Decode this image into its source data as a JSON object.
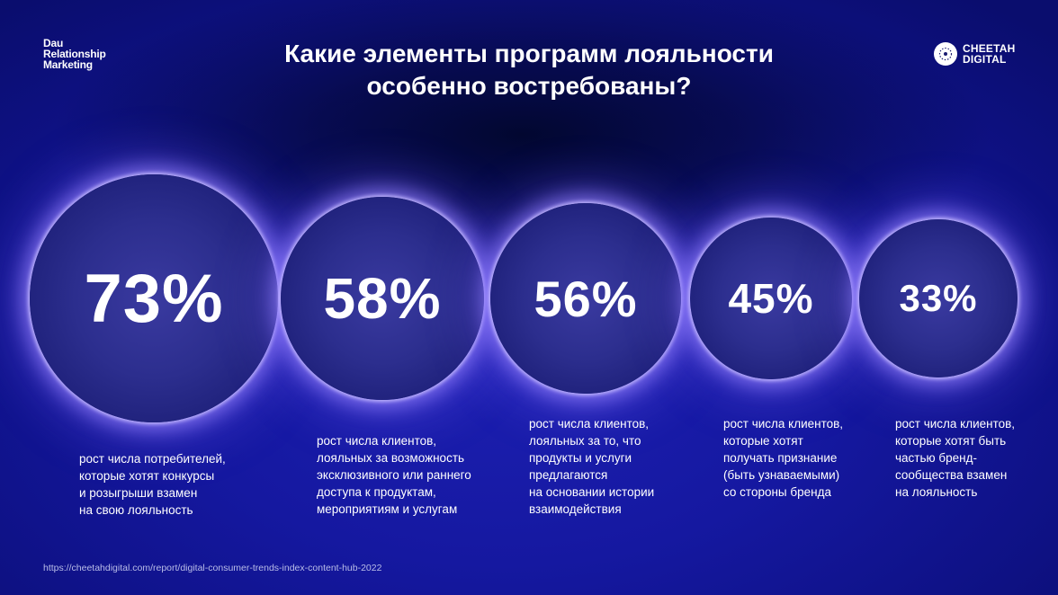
{
  "brand_left": [
    "Dau",
    "Relationship",
    "Marketing"
  ],
  "brand_right": {
    "lines": [
      "CHEETAH",
      "DIGITAL"
    ],
    "icon": "cheetah-digital-logo-icon"
  },
  "title": [
    "Какие элементы программ лояльности",
    "особенно востребованы?"
  ],
  "chart_data": {
    "type": "bubble",
    "unit": "%",
    "items": [
      {
        "value": 73,
        "label": "73%",
        "description": [
          "рост числа потребителей,",
          "которые хотят конкурсы",
          "и розыгрыши взамен",
          "на свою лояльность"
        ]
      },
      {
        "value": 58,
        "label": "58%",
        "description": [
          "рост числа клиентов,",
          "лояльных за возможность",
          "эксклюзивного или раннего",
          "доступа к продуктам,",
          "мероприятиям и услугам"
        ]
      },
      {
        "value": 56,
        "label": "56%",
        "description": [
          "рост числа клиентов,",
          "лояльных за то, что",
          "продукты и услуги",
          "предлагаются",
          "на основании истории",
          "взаимодействия"
        ]
      },
      {
        "value": 45,
        "label": "45%",
        "description": [
          "рост числа клиентов,",
          "которые хотят",
          "получать признание",
          "(быть узнаваемыми)",
          "со стороны бренда"
        ]
      },
      {
        "value": 33,
        "label": "33%",
        "description": [
          "рост числа клиентов,",
          "которые хотят быть",
          "частью бренд-",
          "сообщества взамен",
          "на лояльность"
        ]
      }
    ]
  },
  "source": "https://cheetahdigital.com/report/digital-consumer-trends-index-content-hub-2022"
}
